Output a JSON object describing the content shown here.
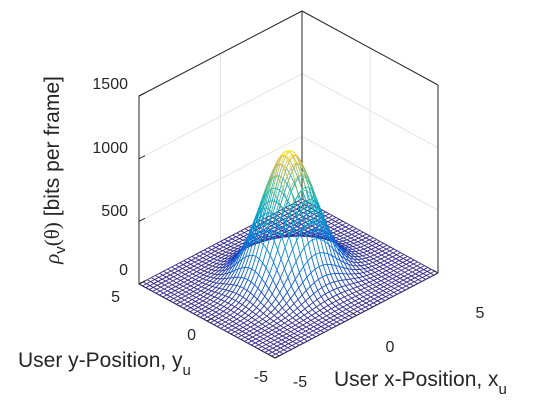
{
  "chart_data": {
    "type": "surface-mesh",
    "title": "",
    "xlabel": {
      "main": "User x-Position, x",
      "sub": "u"
    },
    "ylabel": {
      "main": "User y-Position, y",
      "sub": "u"
    },
    "zlabel": {
      "rho": "ρ",
      "rho_sub": "v",
      "theta": "(θ)",
      "units": "[bits per frame]"
    },
    "x_ticks": [
      "-5",
      "0",
      "5"
    ],
    "y_ticks": [
      "-5",
      "0",
      "5"
    ],
    "z_ticks": [
      "0",
      "500",
      "1000",
      "1500"
    ],
    "xlim": [
      -5,
      5
    ],
    "ylim": [
      -5,
      5
    ],
    "zlim": [
      0,
      1500
    ],
    "grid": true,
    "colormap": "parula",
    "surface": {
      "shape": "2D gaussian centred at origin",
      "peak": 1020,
      "center": [
        0,
        0
      ],
      "sigma": 1.3,
      "mesh_lines_per_axis": 41
    }
  }
}
